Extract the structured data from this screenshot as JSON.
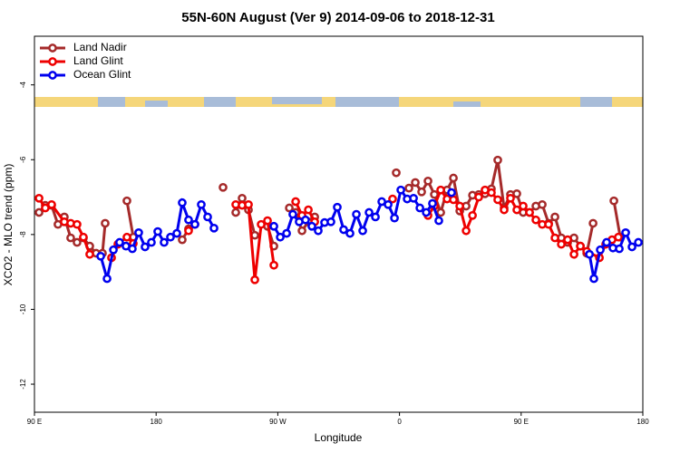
{
  "chart_data": {
    "type": "line",
    "title": "55N-60N August (Ver 9)   2014-09-06 to 2018-12-31",
    "xlabel": "Longitude",
    "ylabel": "XCO2 - MLO trend (ppm)",
    "xlim": [
      90,
      540
    ],
    "ylim": [
      -12.75,
      -2.7
    ],
    "xticks": [
      {
        "value": 90,
        "label": "90 E"
      },
      180,
      {
        "value": 270,
        "label": "90 W"
      },
      {
        "value": 360,
        "label": "0"
      },
      {
        "value": 450,
        "label": "90 E"
      },
      {
        "value": 540,
        "label": "180"
      }
    ],
    "yticks": [
      -12,
      -10,
      -8,
      -6,
      -4
    ],
    "legend": "upper left",
    "series": [
      {
        "name": "Land Nadir",
        "color": "#a52a2a",
        "x": [
          93.4,
          98.0,
          102.7,
          107.4,
          112.1,
          116.8,
          121.5,
          126.2,
          130.9,
          135.6,
          140.3,
          142.3,
          null,
          158.4,
          163.1,
          null,
          199.3,
          204.0,
          null,
          229.5,
          null,
          238.9,
          243.6,
          248.3,
          253.0,
          null,
          262.4,
          267.1,
          null,
          278.5,
          283.2,
          287.9,
          292.6,
          297.3,
          null,
          357.6,
          null,
          367.0,
          371.7,
          376.4,
          381.1,
          385.8,
          390.5,
          395.2,
          399.9,
          404.6,
          409.3,
          414.0,
          418.6,
          423.3,
          428.0,
          432.7,
          437.4,
          442.1,
          446.8,
          451.5,
          456.2,
          460.9,
          465.6,
          470.3,
          475.0,
          479.7,
          484.4,
          489.1,
          493.8,
          498.5,
          503.2,
          null,
          518.6,
          523.3
        ],
        "values": [
          -7.41,
          -7.22,
          -7.22,
          -7.73,
          -7.53,
          -8.09,
          -8.21,
          -8.09,
          -8.31,
          -8.5,
          -8.5,
          -7.7,
          null,
          -7.1,
          -8.07,
          null,
          -8.14,
          -7.85,
          null,
          -6.74,
          null,
          -7.41,
          -7.03,
          -7.34,
          -8.02,
          null,
          -7.78,
          -8.31,
          null,
          -7.29,
          -7.41,
          -7.9,
          -7.66,
          -7.53,
          null,
          -6.35,
          null,
          -6.76,
          -6.61,
          -6.86,
          -6.57,
          -6.93,
          -7.41,
          -6.81,
          -6.49,
          -7.37,
          -7.24,
          -6.95,
          -6.93,
          -6.91,
          -6.78,
          -6.01,
          -7.29,
          -6.93,
          -6.91,
          -7.41,
          -7.41,
          -7.24,
          -7.2,
          -7.7,
          -7.53,
          -8.09,
          -8.21,
          -8.09,
          -8.31,
          -8.5,
          -7.7,
          null,
          -7.1,
          -8.07
        ]
      },
      {
        "name": "Land Glint",
        "color": "#ee0000",
        "x": [
          93.4,
          98.0,
          102.7,
          112.1,
          116.8,
          121.5,
          126.2,
          130.9,
          null,
          147.0,
          151.7,
          158.4,
          163.1,
          null,
          204.0,
          208.7,
          null,
          238.9,
          243.6,
          248.3,
          253.0,
          257.7,
          262.4,
          267.1,
          null,
          283.2,
          287.9,
          292.6,
          297.3,
          null,
          354.9,
          null,
          381.1,
          385.8,
          390.5,
          395.2,
          399.9,
          404.6,
          409.3,
          414.0,
          418.6,
          423.3,
          428.0,
          432.7,
          437.4,
          442.1,
          446.8,
          451.5,
          456.2,
          460.9,
          465.6,
          470.3,
          475.0,
          479.7,
          484.4,
          489.1,
          493.8,
          498.5,
          507.9,
          512.5,
          517.2,
          521.9
        ],
        "values": [
          -7.03,
          -7.29,
          -7.2,
          -7.66,
          -7.7,
          -7.73,
          -8.07,
          -8.53,
          null,
          -8.62,
          -8.26,
          -8.07,
          -8.24,
          null,
          -7.9,
          -7.73,
          null,
          -7.2,
          -7.22,
          -7.2,
          -9.21,
          -7.73,
          -7.63,
          -8.82,
          null,
          -7.12,
          -7.49,
          -7.34,
          -7.66,
          null,
          -7.05,
          null,
          -7.49,
          -7.24,
          -6.81,
          -7.05,
          -7.07,
          -7.24,
          -7.9,
          -7.49,
          -7.0,
          -6.81,
          -6.88,
          -7.07,
          -7.34,
          -7.03,
          -7.34,
          -7.24,
          -7.41,
          -7.61,
          -7.73,
          -7.73,
          -8.09,
          -8.26,
          -8.14,
          -8.53,
          -8.31,
          -8.45,
          -8.62,
          -8.26,
          -8.14,
          -8.07
        ]
      },
      {
        "name": "Ocean Glint",
        "color": "#0000ee",
        "x": [
          139.0,
          143.7,
          148.4,
          153.0,
          157.7,
          162.4,
          167.1,
          171.8,
          176.5,
          181.2,
          185.9,
          190.6,
          195.3,
          199.3,
          204.0,
          208.7,
          213.4,
          218.1,
          222.8,
          null,
          267.1,
          271.8,
          276.5,
          281.1,
          285.8,
          290.5,
          295.2,
          299.9,
          304.6,
          309.3,
          314.0,
          318.7,
          323.4,
          328.1,
          332.8,
          337.5,
          342.2,
          346.9,
          351.6,
          356.3,
          361.0,
          365.7,
          370.4,
          375.1,
          379.8,
          384.4,
          389.1,
          null,
          398.5,
          null,
          500.5,
          503.8,
          508.5,
          513.2,
          517.9,
          522.6,
          527.3,
          532.0,
          536.7
        ],
        "values": [
          -8.58,
          -9.18,
          -8.41,
          -8.21,
          -8.31,
          -8.38,
          -7.95,
          -8.33,
          -8.21,
          -7.92,
          -8.21,
          -8.07,
          -7.97,
          -7.15,
          -7.61,
          -7.73,
          -7.2,
          -7.53,
          -7.83,
          null,
          -7.78,
          -8.07,
          -7.97,
          -7.46,
          -7.66,
          -7.61,
          -7.78,
          -7.9,
          -7.68,
          -7.66,
          -7.27,
          -7.87,
          -7.97,
          -7.46,
          -7.9,
          -7.41,
          -7.53,
          -7.12,
          -7.2,
          -7.56,
          -6.81,
          -7.05,
          -7.03,
          -7.29,
          -7.41,
          -7.17,
          -7.63,
          null,
          -6.88,
          null,
          -8.53,
          -9.18,
          -8.41,
          -8.21,
          -8.36,
          -8.38,
          -7.95,
          -8.33,
          -8.21
        ]
      }
    ]
  }
}
